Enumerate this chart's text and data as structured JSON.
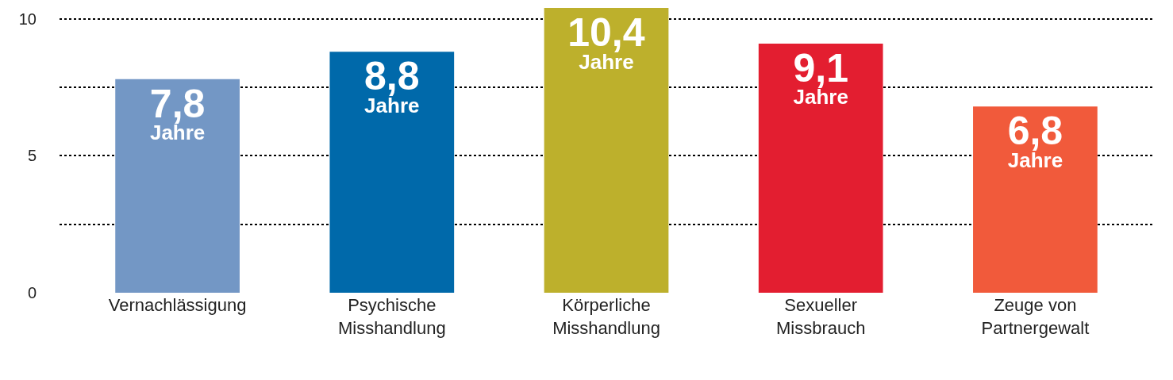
{
  "chart_data": {
    "type": "bar",
    "categories": [
      "Vernachlässigung",
      "Psychische\nMisshandlung",
      "Körperliche\nMisshandlung",
      "Sexueller\nMissbrauch",
      "Zeuge von\nPartnergewalt"
    ],
    "values": [
      7.8,
      8.8,
      10.4,
      9.1,
      6.8
    ],
    "colors": [
      "#7397c5",
      "#0069aa",
      "#bdb02c",
      "#e31e30",
      "#f15a3b"
    ],
    "value_labels": [
      "7,8 Jahre",
      "8,8 Jahre",
      "10,4 Jahre",
      "9,1 Jahre",
      "6,8 Jahre"
    ],
    "ylim": [
      0,
      10.4
    ],
    "yticks": [
      0,
      {
        "value": 2.5,
        "label": null
      },
      5,
      {
        "value": 7.5,
        "label": null
      },
      10
    ],
    "grid": "y"
  }
}
